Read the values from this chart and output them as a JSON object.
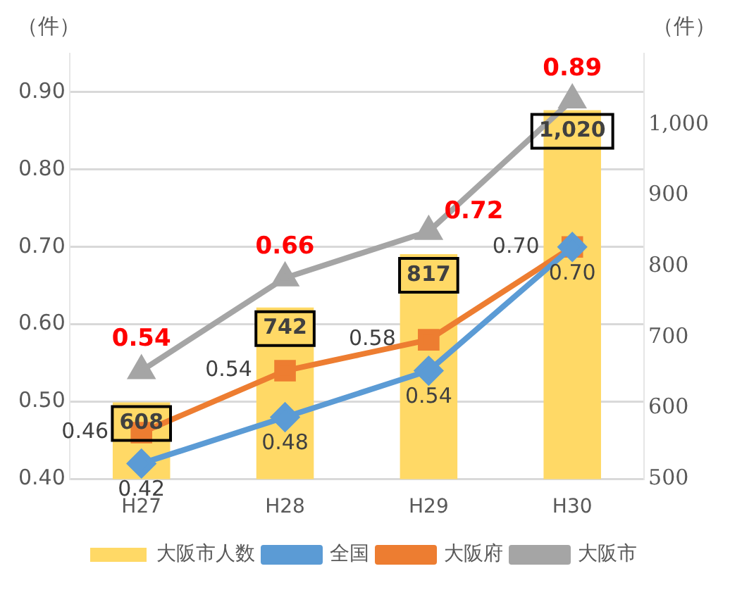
{
  "chart_data": {
    "type": "bar",
    "ylabel": "（件）",
    "y2label": "（件）",
    "categories": [
      "H27",
      "H28",
      "H29",
      "H30"
    ],
    "series": [
      {
        "name": "大阪市人数",
        "axis": "y2",
        "color": "#ffd966",
        "values": [
          608,
          742,
          817,
          1020
        ],
        "value_labels": [
          "608",
          "742",
          "817",
          "1,020"
        ]
      },
      {
        "name": "全国",
        "type": "line",
        "marker": "diamond",
        "color": "#5b9bd5",
        "values": [
          0.42,
          0.48,
          0.54,
          0.7
        ],
        "value_labels": [
          "0.42",
          "0.48",
          "0.54",
          "0.70"
        ]
      },
      {
        "name": "大阪府",
        "type": "line",
        "marker": "square",
        "color": "#ed7d31",
        "values": [
          0.46,
          0.54,
          0.58,
          0.7
        ],
        "value_labels": [
          "0.46",
          "0.54",
          "0.58",
          "0.70"
        ]
      },
      {
        "name": "大阪市",
        "type": "line",
        "marker": "triangle",
        "color": "#a5a5a5",
        "values": [
          0.54,
          0.66,
          0.72,
          0.89
        ]
      }
    ],
    "data_labels": true,
    "ylim": [
      0.4,
      0.95
    ],
    "yticks": [
      {
        "value": 0.4,
        "label": "0.40"
      },
      {
        "value": 0.5,
        "label": "0.50"
      },
      {
        "value": 0.6,
        "label": "0.60"
      },
      {
        "value": 0.7,
        "label": "0.70"
      },
      {
        "value": 0.8,
        "label": "0.80"
      },
      {
        "value": 0.9,
        "label": "0.90"
      }
    ],
    "y2lim": [
      500,
      1100
    ],
    "y2ticks": [
      500,
      600,
      700,
      800,
      900,
      {
        "value": 1000,
        "label": "1,000"
      }
    ],
    "grid": "y",
    "legend": "bottom"
  }
}
